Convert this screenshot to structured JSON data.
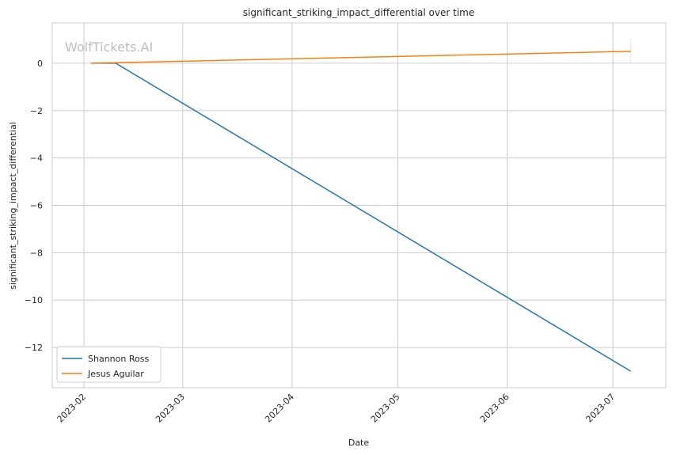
{
  "chart_data": {
    "type": "line",
    "title": "significant_striking_impact_differential over time",
    "xlabel": "Date",
    "ylabel": "significant_striking_impact_differential",
    "watermark": "WolfTickets.AI",
    "x_ticks": [
      "2023-02",
      "2023-03",
      "2023-04",
      "2023-05",
      "2023-06",
      "2023-07"
    ],
    "y_ticks": [
      0,
      -2,
      -4,
      -6,
      -8,
      -10,
      -12
    ],
    "y_tick_labels": [
      "0",
      "−2",
      "−4",
      "−6",
      "−8",
      "−10",
      "−12"
    ],
    "xlim": [
      "2023-01-23",
      "2023-07-16"
    ],
    "ylim": [
      -13.7,
      1.7
    ],
    "grid": true,
    "legend_position": "lower-left",
    "series": [
      {
        "name": "Shannon Ross",
        "color": "#1f77b4",
        "x": [
          "2023-02-03",
          "2023-02-10",
          "2023-07-06"
        ],
        "y": [
          0.0,
          0.0,
          -13.0
        ]
      },
      {
        "name": "Jesus Aguilar",
        "color": "#ff7f0e",
        "x": [
          "2023-02-03",
          "2023-07-06"
        ],
        "y": [
          0.0,
          0.5
        ]
      }
    ]
  }
}
